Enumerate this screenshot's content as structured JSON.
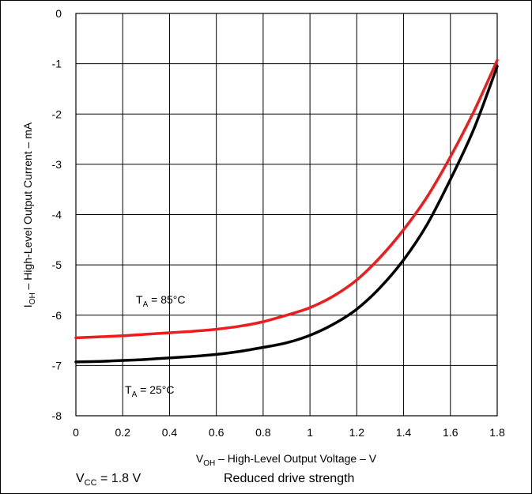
{
  "chart_data": {
    "type": "line",
    "xlabel": {
      "main": "V",
      "sub": "OH",
      "rest": " – High-Level Output Voltage – V"
    },
    "ylabel": {
      "main": "I",
      "sub": "OH",
      "rest": " – High-Level Output Current – mA"
    },
    "xlim": [
      0,
      1.8
    ],
    "ylim": [
      -8,
      0
    ],
    "xticks": [
      0,
      0.2,
      0.4,
      0.6,
      0.8,
      1,
      1.2,
      1.4,
      1.6,
      1.8
    ],
    "xtick_labels": [
      "0",
      "0.2",
      "0.4",
      "0.6",
      "0.8",
      "1",
      "1.2",
      "1.4",
      "1.6",
      "1.8"
    ],
    "yticks": [
      0,
      -1,
      -2,
      -3,
      -4,
      -5,
      -6,
      -7,
      -8
    ],
    "ytick_labels": [
      "0",
      "-1",
      "-2",
      "-3",
      "-4",
      "-5",
      "-6",
      "-7",
      "-8"
    ],
    "grid": true,
    "series": [
      {
        "name": "T_A = 85°C",
        "color": "#ee1c1c",
        "x": [
          0,
          0.1,
          0.2,
          0.3,
          0.4,
          0.5,
          0.6,
          0.7,
          0.8,
          0.9,
          1.0,
          1.1,
          1.2,
          1.3,
          1.4,
          1.5,
          1.6,
          1.7,
          1.8
        ],
        "y": [
          -6.45,
          -6.43,
          -6.41,
          -6.38,
          -6.35,
          -6.32,
          -6.28,
          -6.22,
          -6.13,
          -6.0,
          -5.85,
          -5.62,
          -5.3,
          -4.85,
          -4.3,
          -3.65,
          -2.85,
          -1.95,
          -0.93
        ]
      },
      {
        "name": "T_A = 25°C",
        "color": "#000000",
        "x": [
          0,
          0.1,
          0.2,
          0.3,
          0.4,
          0.5,
          0.6,
          0.7,
          0.8,
          0.9,
          1.0,
          1.1,
          1.2,
          1.3,
          1.4,
          1.5,
          1.6,
          1.7,
          1.8
        ],
        "y": [
          -6.93,
          -6.92,
          -6.9,
          -6.88,
          -6.85,
          -6.82,
          -6.78,
          -6.72,
          -6.64,
          -6.55,
          -6.4,
          -6.18,
          -5.88,
          -5.45,
          -4.9,
          -4.2,
          -3.3,
          -2.3,
          -1.05
        ]
      }
    ],
    "annotations": [
      {
        "main": "T",
        "sub": "A",
        "rest": " = 85°C"
      },
      {
        "main": "T",
        "sub": "A",
        "rest": " = 25°C"
      }
    ]
  },
  "footer": {
    "vcc_main": "V",
    "vcc_sub": "CC",
    "vcc_rest": " = 1.8 V",
    "mode": "Reduced drive strength"
  }
}
